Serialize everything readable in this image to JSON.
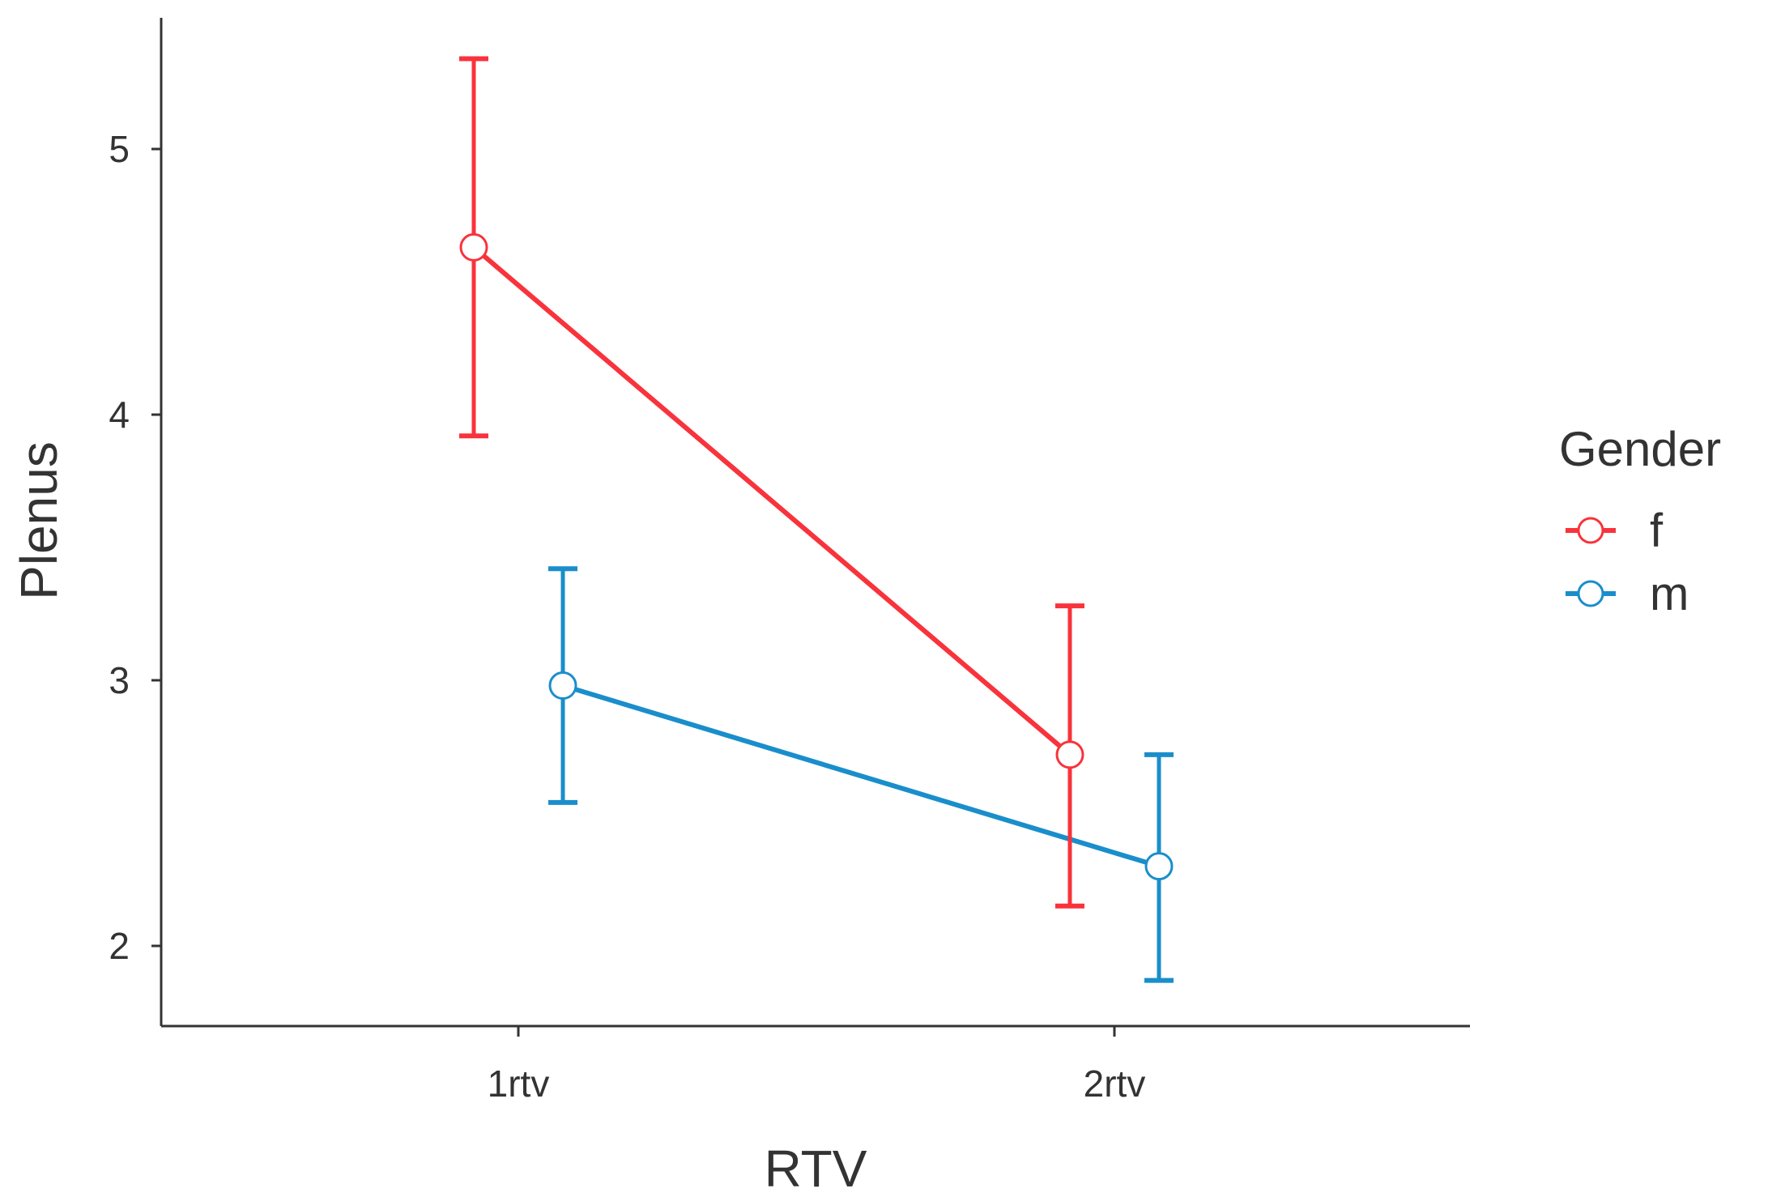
{
  "chart_data": {
    "type": "line",
    "xlabel": "RTV",
    "ylabel": "Plenus",
    "categories": [
      "1rtv",
      "2rtv"
    ],
    "ylim": [
      1.7,
      5.5
    ],
    "yticks": [
      2,
      3,
      4,
      5
    ],
    "ytick_labels": [
      "2",
      "3",
      "4",
      "5"
    ],
    "grid": false,
    "error_bars": true,
    "legend": {
      "title": "Gender",
      "position": "right"
    },
    "series": [
      {
        "name": "f",
        "color": "#F8333C",
        "values": [
          4.63,
          2.72
        ],
        "error_low": [
          3.92,
          2.15
        ],
        "error_high": [
          5.34,
          3.28
        ]
      },
      {
        "name": "m",
        "color": "#1A8ECB",
        "values": [
          2.98,
          2.3
        ],
        "error_low": [
          2.54,
          1.87
        ],
        "error_high": [
          3.42,
          2.72
        ]
      }
    ]
  }
}
